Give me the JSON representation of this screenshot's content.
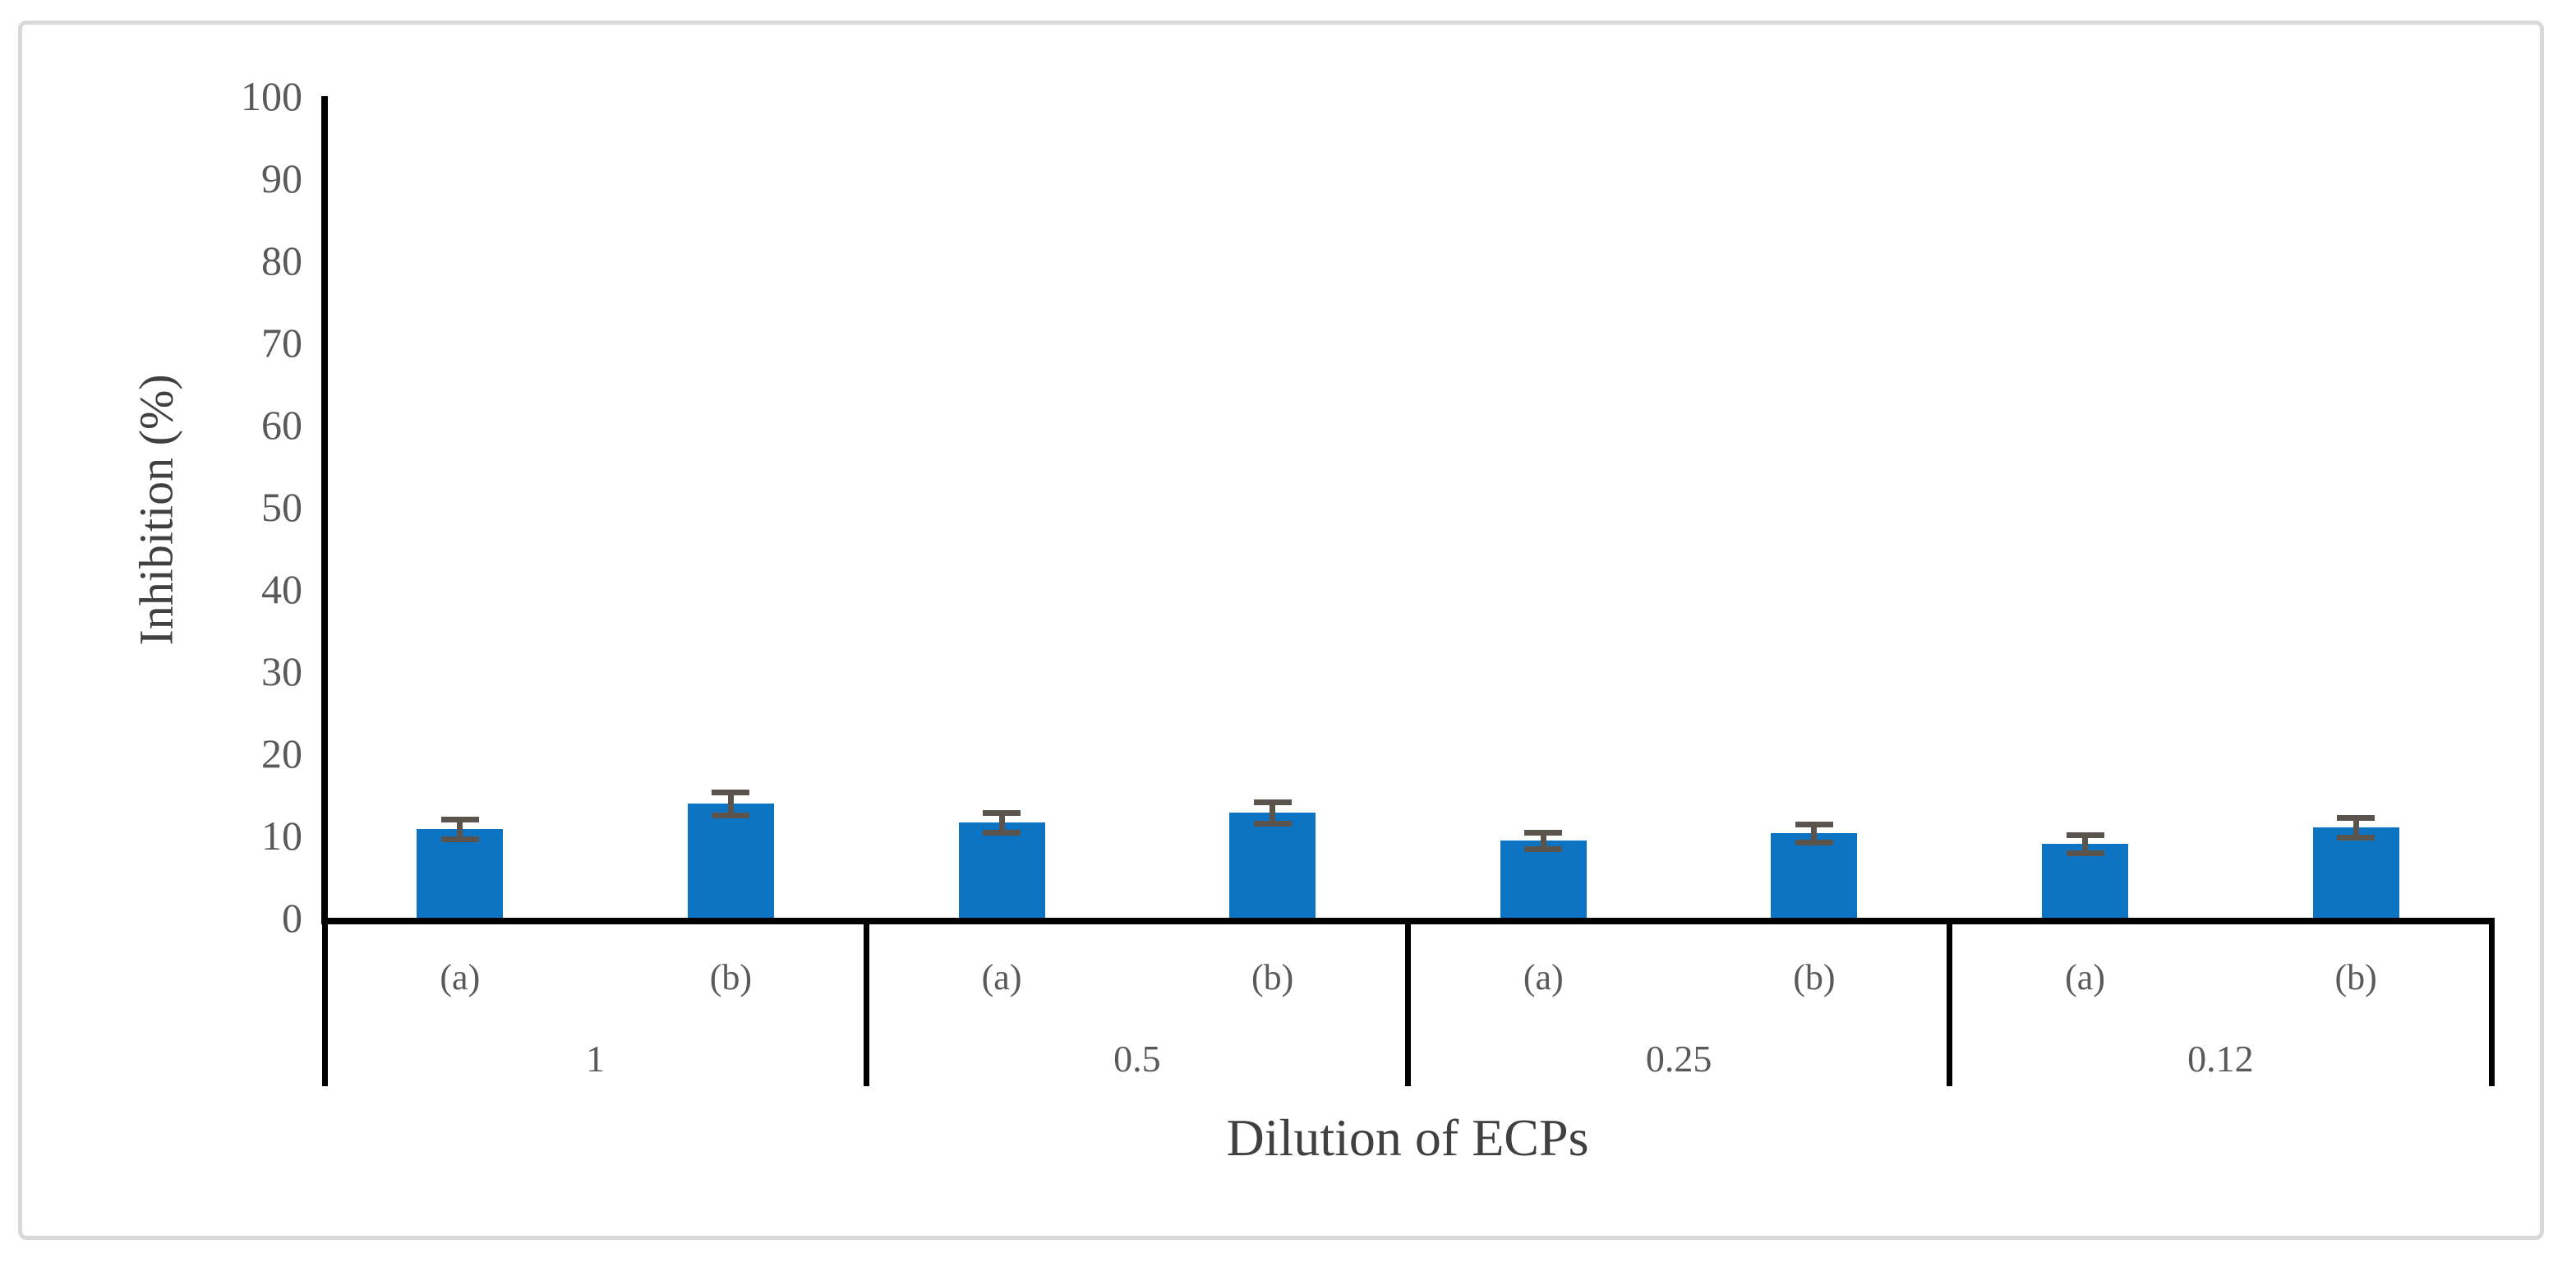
{
  "figure": {
    "background_color": "#ffffff",
    "border_color": "#d9d9d9"
  },
  "chart_data": {
    "type": "bar",
    "title": "",
    "xlabel": "Dilution of ECPs",
    "ylabel": "Inhibition (%)",
    "ylim": [
      0,
      100
    ],
    "ytick_step": 10,
    "yticks": [
      0,
      10,
      20,
      30,
      40,
      50,
      60,
      70,
      80,
      90,
      100
    ],
    "grid": false,
    "legend_position": "none",
    "bar_color": "#0d74c4",
    "error_bar_color": "#5a544c",
    "axis_color": "#000000",
    "tick_label_color": "#595959",
    "categories": [
      "1",
      "0.5",
      "0.25",
      "0.12"
    ],
    "sub_categories": [
      "(a)",
      "(b)"
    ],
    "groups": [
      {
        "label": "1",
        "bars": [
          {
            "label": "(a)",
            "value": 10.8,
            "error": 1.2
          },
          {
            "label": "(b)",
            "value": 13.9,
            "error": 1.4
          }
        ]
      },
      {
        "label": "0.5",
        "bars": [
          {
            "label": "(a)",
            "value": 11.6,
            "error": 1.2
          },
          {
            "label": "(b)",
            "value": 12.8,
            "error": 1.3
          }
        ]
      },
      {
        "label": "0.25",
        "bars": [
          {
            "label": "(a)",
            "value": 9.4,
            "error": 1.0
          },
          {
            "label": "(b)",
            "value": 10.3,
            "error": 1.1
          }
        ]
      },
      {
        "label": "0.12",
        "bars": [
          {
            "label": "(a)",
            "value": 9.0,
            "error": 1.1
          },
          {
            "label": "(b)",
            "value": 11.0,
            "error": 1.2
          }
        ]
      }
    ]
  }
}
